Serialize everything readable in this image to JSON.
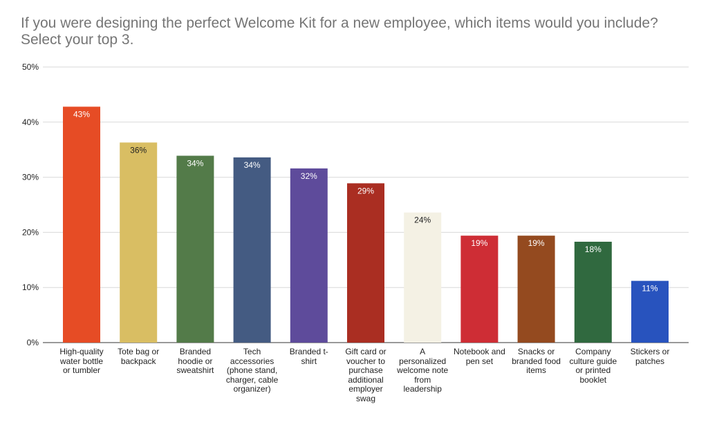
{
  "chart_data": {
    "type": "bar",
    "title": "If you were designing the perfect Welcome Kit for a new employee, which items would you include? Select your top 3.",
    "xlabel": "",
    "ylabel": "",
    "ylim": [
      0,
      50
    ],
    "yticks": [
      "0%",
      "10%",
      "20%",
      "30%",
      "40%",
      "50%"
    ],
    "grid": true,
    "legend": "none",
    "categories": [
      "High-quality water bottle or tumbler",
      "Tote bag or backpack",
      "Branded hoodie or sweatshirt",
      "Tech accessories (phone stand, charger, cable organizer)",
      "Branded t-shirt",
      "Gift card or voucher to purchase additional employer swag",
      "A personalized welcome note from leadership",
      "Notebook and pen set",
      "Snacks or branded food items",
      "Company culture guide or printed booklet",
      "Stickers or patches"
    ],
    "values": [
      42.8,
      36.3,
      33.9,
      33.6,
      31.6,
      28.9,
      23.6,
      19.4,
      19.4,
      18.3,
      11.2
    ],
    "data_labels": [
      "43%",
      "36%",
      "34%",
      "34%",
      "32%",
      "29%",
      "24%",
      "19%",
      "19%",
      "18%",
      "11%"
    ],
    "colors": [
      "#E64C25",
      "#D9BE63",
      "#537B49",
      "#445B82",
      "#5E4B9B",
      "#AA2E22",
      "#F4F1E4",
      "#CE2D35",
      "#944A1F",
      "#30693F",
      "#2853BE"
    ],
    "label_colors": [
      "#ffffff",
      "#222222",
      "#ffffff",
      "#ffffff",
      "#ffffff",
      "#ffffff",
      "#222222",
      "#ffffff",
      "#ffffff",
      "#ffffff",
      "#ffffff"
    ]
  }
}
